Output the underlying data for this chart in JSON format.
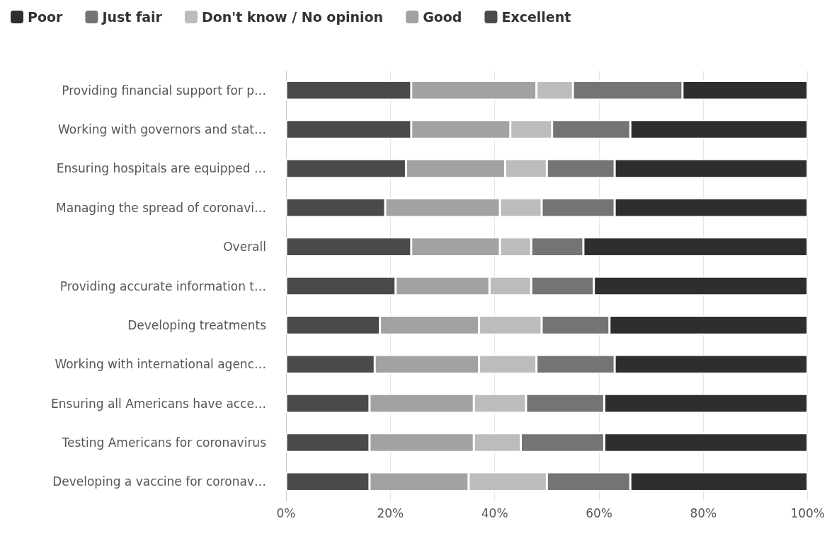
{
  "chart_data": {
    "type": "bar",
    "orientation": "horizontal",
    "stacked": true,
    "categories": [
      "Providing financial support for p…",
      "Working with governors and stat…",
      "Ensuring hospitals are equipped …",
      "Managing the spread of coronavi…",
      "Overall",
      "Providing accurate information t…",
      "Developing treatments",
      "Working with international agenc…",
      "Ensuring all Americans have acce…",
      "Testing Americans for coronavirus",
      "Developing a vaccine for coronav…"
    ],
    "series": [
      {
        "name": "Excellent",
        "color": "#4a4a4a",
        "values": [
          24,
          24,
          23,
          19,
          24,
          21,
          18,
          17,
          16,
          16,
          16
        ]
      },
      {
        "name": "Good",
        "color": "#a2a2a2",
        "values": [
          24,
          19,
          19,
          22,
          17,
          18,
          19,
          20,
          20,
          20,
          19
        ]
      },
      {
        "name": "Don't know / No opinion",
        "color": "#bcbcbc",
        "values": [
          7,
          8,
          8,
          8,
          6,
          8,
          12,
          11,
          10,
          9,
          15
        ]
      },
      {
        "name": "Just fair",
        "color": "#747474",
        "values": [
          21,
          15,
          13,
          14,
          10,
          12,
          13,
          15,
          15,
          16,
          16
        ]
      },
      {
        "name": "Poor",
        "color": "#2e2e2e",
        "values": [
          24,
          34,
          37,
          37,
          43,
          41,
          38,
          37,
          39,
          39,
          34
        ]
      }
    ],
    "xlim": [
      0,
      100
    ],
    "xticks": [
      {
        "value": 0,
        "label": "0%"
      },
      {
        "value": 20,
        "label": "20%"
      },
      {
        "value": 40,
        "label": "40%"
      },
      {
        "value": 60,
        "label": "60%"
      },
      {
        "value": 80,
        "label": "80%"
      },
      {
        "value": 100,
        "label": "100%"
      }
    ],
    "grid": "x",
    "legend": "top left"
  }
}
